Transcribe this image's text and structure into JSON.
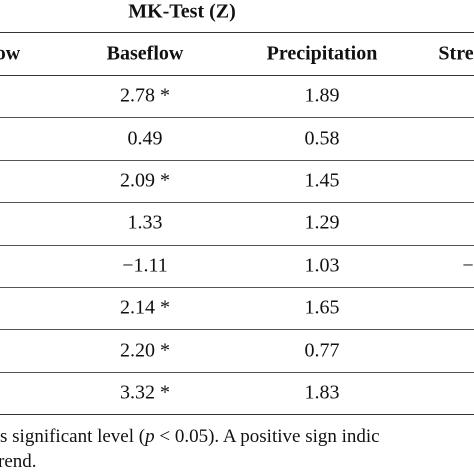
{
  "title": "MK-Test (Z)",
  "table": {
    "header": [
      "ow",
      "Baseflow",
      "Precipitation",
      "Stre"
    ],
    "rows": [
      [
        "2.78 *",
        "1.89"
      ],
      [
        "0.49",
        "0.58"
      ],
      [
        "2.09 *",
        "1.45"
      ],
      [
        "1.33",
        "1.29"
      ],
      [
        "−1.11",
        "1.03"
      ],
      [
        "2.14 *",
        "1.65"
      ],
      [
        "2.20 *",
        "0.77"
      ],
      [
        "3.32 *",
        "1.83"
      ]
    ],
    "row_fragments": [
      {
        "row": 4,
        "text": "−"
      }
    ]
  },
  "footnote": {
    "line1": [
      "s significant level (",
      "p",
      " < 0.05). A positive sign indic"
    ],
    "line2": "rend."
  }
}
